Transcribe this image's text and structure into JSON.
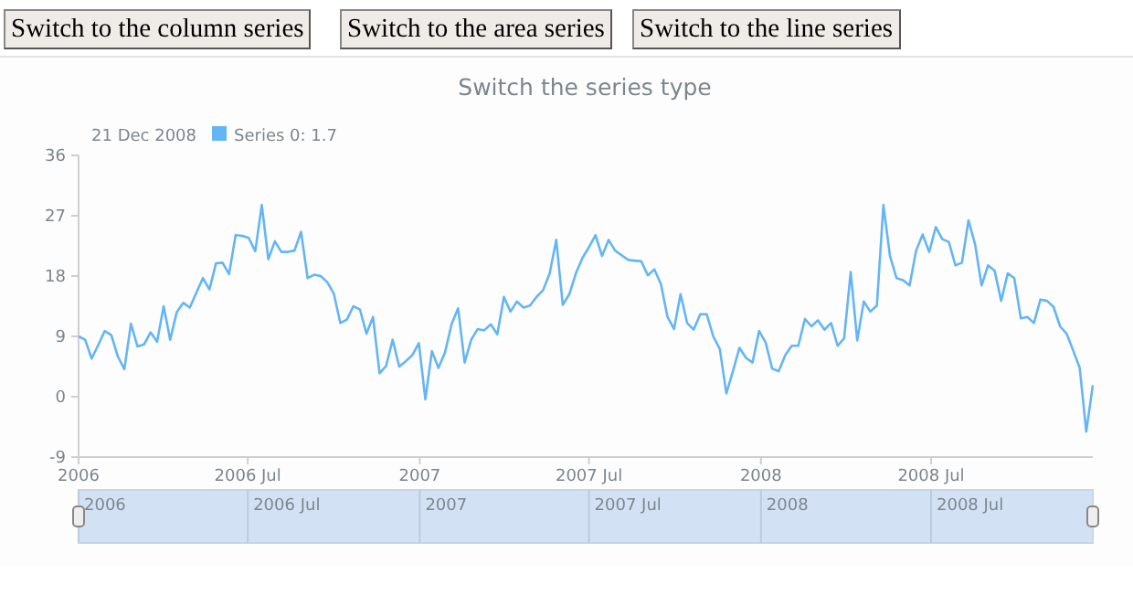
{
  "chart_data": {
    "type": "line",
    "title": "Switch the series type",
    "annotations": [
      "Switch to the column series",
      "Switch to the area series",
      "Switch to the line series"
    ],
    "x": [
      "2006-01-01",
      "2006-01-08",
      "2006-01-15",
      "2006-01-22",
      "2006-01-29",
      "2006-02-05",
      "2006-02-12",
      "2006-02-19",
      "2006-02-26",
      "2006-03-05",
      "2006-03-12",
      "2006-03-19",
      "2006-03-26",
      "2006-04-02",
      "2006-04-09",
      "2006-04-16",
      "2006-04-23",
      "2006-04-30",
      "2006-05-07",
      "2006-05-14",
      "2006-05-21",
      "2006-05-28",
      "2006-06-04",
      "2006-06-11",
      "2006-06-18",
      "2006-06-25",
      "2006-07-02",
      "2006-07-09",
      "2006-07-16",
      "2006-07-23",
      "2006-07-30",
      "2006-08-06",
      "2006-08-13",
      "2006-08-20",
      "2006-08-27",
      "2006-09-03",
      "2006-09-10",
      "2006-09-17",
      "2006-09-24",
      "2006-10-01",
      "2006-10-08",
      "2006-10-15",
      "2006-10-22",
      "2006-10-29",
      "2006-11-05",
      "2006-11-12",
      "2006-11-19",
      "2006-11-26",
      "2006-12-03",
      "2006-12-10",
      "2006-12-17",
      "2006-12-24",
      "2006-12-31",
      "2007-01-07",
      "2007-01-14",
      "2007-01-21",
      "2007-01-28",
      "2007-02-04",
      "2007-02-11",
      "2007-02-18",
      "2007-02-25",
      "2007-03-04",
      "2007-03-11",
      "2007-03-18",
      "2007-03-25",
      "2007-04-01",
      "2007-04-08",
      "2007-04-15",
      "2007-04-22",
      "2007-04-29",
      "2007-05-06",
      "2007-05-13",
      "2007-05-20",
      "2007-05-27",
      "2007-06-03",
      "2007-06-10",
      "2007-06-17",
      "2007-06-24",
      "2007-07-01",
      "2007-07-08",
      "2007-07-15",
      "2007-07-22",
      "2007-07-29",
      "2007-08-05",
      "2007-08-12",
      "2007-08-19",
      "2007-08-26",
      "2007-09-02",
      "2007-09-09",
      "2007-09-16",
      "2007-09-23",
      "2007-09-30",
      "2007-10-07",
      "2007-10-14",
      "2007-10-21",
      "2007-10-28",
      "2007-11-04",
      "2007-11-11",
      "2007-11-18",
      "2007-11-25",
      "2007-12-02",
      "2007-12-09",
      "2007-12-16",
      "2007-12-23",
      "2007-12-30",
      "2008-01-06",
      "2008-01-13",
      "2008-01-20",
      "2008-01-27",
      "2008-02-03",
      "2008-02-10",
      "2008-02-17",
      "2008-02-24",
      "2008-03-02",
      "2008-03-09",
      "2008-03-16",
      "2008-03-23",
      "2008-03-30",
      "2008-04-06",
      "2008-04-13",
      "2008-04-20",
      "2008-04-27",
      "2008-05-04",
      "2008-05-11",
      "2008-05-18",
      "2008-05-25",
      "2008-06-01",
      "2008-06-08",
      "2008-06-15",
      "2008-06-22",
      "2008-06-29",
      "2008-07-06",
      "2008-07-13",
      "2008-07-20",
      "2008-07-27",
      "2008-08-03",
      "2008-08-10",
      "2008-08-17",
      "2008-08-24",
      "2008-08-31",
      "2008-09-07",
      "2008-09-14",
      "2008-09-21",
      "2008-09-28",
      "2008-10-05",
      "2008-10-12",
      "2008-10-19",
      "2008-10-26",
      "2008-11-02",
      "2008-11-09",
      "2008-11-16",
      "2008-11-23",
      "2008-11-30",
      "2008-12-07",
      "2008-12-14",
      "2008-12-21"
    ],
    "legend_title": "21 Dec 2008",
    "series": [
      {
        "name": "Series 0: 1.7",
        "color": "#64b5f6",
        "values": [
          9.0,
          8.5,
          5.7,
          7.7,
          9.8,
          9.2,
          6.0,
          4.1,
          10.9,
          7.5,
          7.8,
          9.6,
          8.2,
          13.5,
          8.5,
          12.6,
          14.0,
          13.3,
          15.5,
          17.7,
          16.0,
          19.9,
          20.0,
          18.3,
          24.1,
          24.0,
          23.7,
          21.7,
          28.6,
          20.5,
          23.2,
          21.6,
          21.6,
          21.8,
          24.6,
          17.7,
          18.2,
          18.0,
          17.1,
          15.4,
          11.0,
          11.5,
          13.5,
          13.0,
          9.4,
          11.9,
          3.5,
          4.6,
          8.5,
          4.5,
          5.3,
          6.2,
          8.0,
          -0.4,
          6.8,
          4.3,
          6.6,
          10.8,
          13.2,
          5.1,
          8.5,
          10.1,
          9.9,
          10.8,
          9.3,
          14.9,
          12.7,
          14.2,
          13.3,
          13.6,
          14.9,
          15.9,
          18.4,
          23.4,
          13.7,
          15.3,
          18.4,
          20.7,
          22.3,
          24.1,
          21.0,
          23.4,
          21.8,
          21.1,
          20.4,
          20.3,
          20.2,
          18.1,
          19.0,
          16.8,
          11.9,
          10.1,
          15.3,
          11.0,
          10.0,
          12.3,
          12.3,
          9.0,
          7.1,
          0.5,
          3.8,
          7.3,
          5.8,
          5.1,
          9.8,
          8.1,
          4.2,
          3.8,
          6.2,
          7.6,
          7.6,
          11.6,
          10.5,
          11.4,
          10.0,
          11.0,
          7.6,
          8.7,
          18.6,
          8.4,
          14.2,
          12.7,
          13.6,
          28.6,
          21.0,
          17.7,
          17.4,
          16.6,
          21.8,
          24.2,
          21.6,
          25.3,
          23.5,
          23.1,
          19.6,
          20.0,
          26.3,
          22.8,
          16.6,
          19.6,
          18.8,
          14.3,
          18.4,
          17.7,
          11.7,
          11.9,
          11.0,
          14.5,
          14.3,
          13.4,
          10.5,
          9.4,
          6.9,
          4.3,
          -5.2,
          1.7
        ]
      }
    ],
    "xlim": [
      "2006-01-01",
      "2008-12-21"
    ],
    "xticks": [
      {
        "value": "2006-01-01",
        "label": "2006"
      },
      {
        "value": "2006-07-01",
        "label": "2006 Jul"
      },
      {
        "value": "2007-01-01",
        "label": "2007"
      },
      {
        "value": "2007-07-01",
        "label": "2007 Jul"
      },
      {
        "value": "2008-01-01",
        "label": "2008"
      },
      {
        "value": "2008-07-01",
        "label": "2008 Jul"
      }
    ],
    "ylim": [
      -9,
      36
    ],
    "yticks": [
      -9,
      0,
      9,
      18,
      27,
      36
    ],
    "legend": "top left",
    "marker": "none",
    "line_style": "solid"
  }
}
